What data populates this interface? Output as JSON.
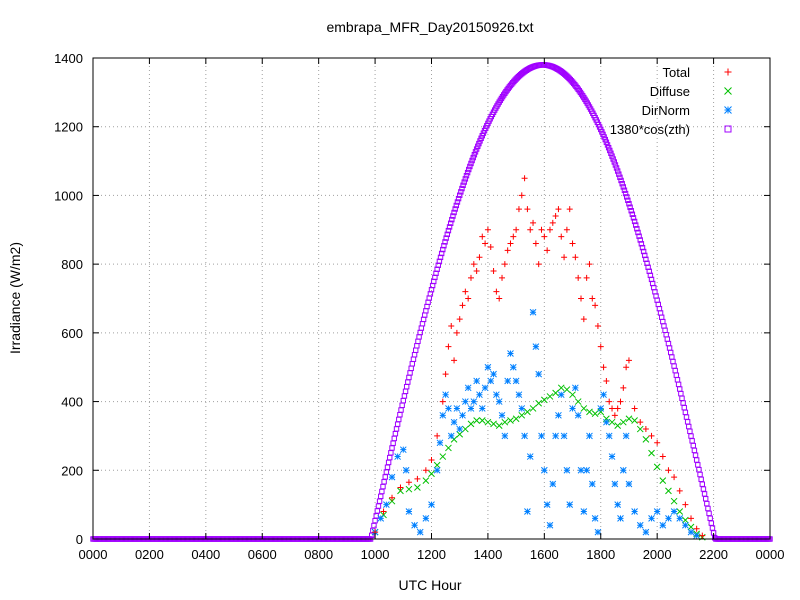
{
  "chart_data": {
    "type": "scatter",
    "title": "embrapa_MFR_Day20150926.txt",
    "xlabel": "UTC Hour",
    "ylabel": "Irradiance (W/m2)",
    "xlim": [
      0,
      24
    ],
    "ylim": [
      0,
      1400
    ],
    "x_ticks": [
      0,
      2,
      4,
      6,
      8,
      10,
      12,
      14,
      16,
      18,
      20,
      22,
      24
    ],
    "x_tick_labels": [
      "0000",
      "0200",
      "0400",
      "0600",
      "0800",
      "1000",
      "1200",
      "1400",
      "1600",
      "1800",
      "2000",
      "2200",
      "0000"
    ],
    "y_ticks": [
      0,
      200,
      400,
      600,
      800,
      1000,
      1200,
      1400
    ],
    "grid": true,
    "legend_position": "top-right",
    "series": [
      {
        "name": "Total",
        "marker": "plus",
        "color": "#ff0000",
        "x": [
          10.0,
          10.3,
          10.6,
          10.9,
          11.2,
          11.5,
          11.8,
          12.0,
          12.2,
          12.4,
          12.5,
          12.6,
          12.7,
          12.8,
          12.9,
          13.0,
          13.1,
          13.2,
          13.3,
          13.4,
          13.5,
          13.6,
          13.7,
          13.8,
          13.9,
          14.0,
          14.1,
          14.2,
          14.3,
          14.4,
          14.5,
          14.6,
          14.7,
          14.8,
          14.9,
          15.0,
          15.1,
          15.2,
          15.3,
          15.4,
          15.5,
          15.6,
          15.7,
          15.8,
          15.9,
          16.0,
          16.1,
          16.2,
          16.3,
          16.4,
          16.5,
          16.6,
          16.7,
          16.8,
          16.9,
          17.0,
          17.1,
          17.2,
          17.3,
          17.4,
          17.5,
          17.6,
          17.7,
          17.8,
          17.9,
          18.0,
          18.1,
          18.2,
          18.3,
          18.4,
          18.5,
          18.6,
          18.7,
          18.8,
          18.9,
          19.0,
          19.2,
          19.4,
          19.6,
          19.8,
          20.0,
          20.2,
          20.4,
          20.6,
          20.8,
          21.0,
          21.2,
          21.4,
          21.6
        ],
        "y": [
          20,
          80,
          120,
          150,
          165,
          175,
          200,
          230,
          300,
          400,
          480,
          560,
          620,
          520,
          600,
          640,
          680,
          720,
          700,
          760,
          800,
          780,
          820,
          880,
          860,
          900,
          850,
          780,
          720,
          700,
          760,
          800,
          840,
          860,
          880,
          900,
          960,
          1000,
          1050,
          960,
          900,
          920,
          860,
          800,
          900,
          880,
          840,
          900,
          920,
          940,
          960,
          880,
          820,
          900,
          960,
          860,
          820,
          760,
          700,
          640,
          760,
          800,
          700,
          680,
          620,
          560,
          500,
          460,
          400,
          380,
          360,
          380,
          400,
          440,
          500,
          520,
          380,
          340,
          320,
          300,
          280,
          240,
          200,
          180,
          140,
          100,
          60,
          30,
          10
        ]
      },
      {
        "name": "Diffuse",
        "marker": "cross",
        "color": "#00c000",
        "x": [
          10.0,
          10.3,
          10.6,
          10.9,
          11.2,
          11.5,
          11.8,
          12.0,
          12.2,
          12.4,
          12.6,
          12.8,
          13.0,
          13.2,
          13.4,
          13.6,
          13.8,
          14.0,
          14.2,
          14.4,
          14.6,
          14.8,
          15.0,
          15.2,
          15.4,
          15.6,
          15.8,
          16.0,
          16.2,
          16.4,
          16.6,
          16.8,
          17.0,
          17.2,
          17.4,
          17.6,
          17.8,
          18.0,
          18.2,
          18.4,
          18.6,
          18.8,
          19.0,
          19.2,
          19.4,
          19.6,
          19.8,
          20.0,
          20.2,
          20.4,
          20.6,
          20.8,
          21.0,
          21.2,
          21.4,
          21.6
        ],
        "y": [
          20,
          70,
          110,
          140,
          145,
          150,
          170,
          190,
          215,
          240,
          265,
          290,
          305,
          320,
          335,
          345,
          345,
          340,
          335,
          330,
          340,
          345,
          350,
          360,
          370,
          380,
          395,
          405,
          415,
          425,
          440,
          435,
          420,
          400,
          380,
          370,
          365,
          370,
          350,
          340,
          330,
          340,
          350,
          345,
          320,
          290,
          250,
          210,
          170,
          140,
          110,
          80,
          55,
          35,
          15,
          5
        ]
      },
      {
        "name": "DirNorm",
        "marker": "star",
        "color": "#0080ff",
        "x": [
          10.0,
          10.2,
          10.4,
          10.6,
          10.8,
          11.0,
          11.1,
          11.2,
          11.4,
          11.6,
          11.8,
          12.0,
          12.2,
          12.3,
          12.4,
          12.5,
          12.6,
          12.7,
          12.8,
          12.9,
          13.0,
          13.1,
          13.2,
          13.3,
          13.4,
          13.5,
          13.6,
          13.7,
          13.8,
          13.9,
          14.0,
          14.1,
          14.2,
          14.3,
          14.4,
          14.5,
          14.6,
          14.7,
          14.8,
          14.9,
          15.0,
          15.1,
          15.2,
          15.3,
          15.4,
          15.5,
          15.6,
          15.7,
          15.8,
          15.9,
          16.0,
          16.1,
          16.2,
          16.3,
          16.4,
          16.5,
          16.6,
          16.7,
          16.8,
          16.9,
          17.0,
          17.1,
          17.2,
          17.3,
          17.4,
          17.5,
          17.6,
          17.7,
          17.8,
          17.9,
          18.0,
          18.1,
          18.2,
          18.3,
          18.4,
          18.5,
          18.6,
          18.7,
          18.8,
          18.9,
          19.0,
          19.2,
          19.4,
          19.6,
          19.8,
          20.0,
          20.2,
          20.4,
          20.6,
          20.8,
          21.0,
          21.2,
          21.4
        ],
        "y": [
          20,
          60,
          100,
          180,
          240,
          260,
          200,
          80,
          40,
          20,
          60,
          100,
          200,
          280,
          360,
          420,
          380,
          300,
          340,
          380,
          320,
          360,
          400,
          440,
          380,
          400,
          460,
          420,
          380,
          440,
          500,
          460,
          480,
          420,
          400,
          360,
          300,
          460,
          540,
          500,
          460,
          420,
          380,
          300,
          80,
          240,
          660,
          560,
          480,
          300,
          200,
          100,
          40,
          160,
          300,
          360,
          420,
          300,
          200,
          100,
          380,
          440,
          360,
          200,
          80,
          200,
          300,
          160,
          60,
          20,
          380,
          420,
          340,
          300,
          240,
          160,
          100,
          60,
          200,
          300,
          160,
          80,
          40,
          20,
          60,
          80,
          40,
          60,
          80,
          60,
          40,
          20,
          10
        ]
      },
      {
        "name": "1380*cos(zth)",
        "marker": "square",
        "color": "#a000ff",
        "curve_peak": 1380,
        "curve_peak_x": 15.95,
        "curve_start_x": 9.85,
        "curve_end_x": 22.05
      }
    ]
  }
}
